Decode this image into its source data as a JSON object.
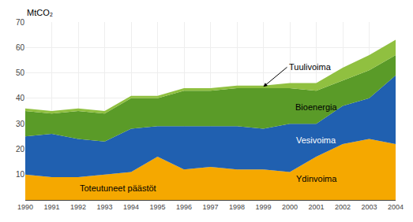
{
  "chart_data": {
    "type": "area",
    "stacked": true,
    "ylabel": "MtCO₂",
    "x": [
      1990,
      1991,
      1992,
      1993,
      1994,
      1995,
      1996,
      1997,
      1998,
      1999,
      2000,
      2001,
      2002,
      2003,
      2004
    ],
    "xlim": [
      1990,
      2004
    ],
    "xticks": [
      1990,
      1991,
      1992,
      1993,
      1994,
      1995,
      1996,
      1997,
      1998,
      1999,
      2000,
      2001,
      2002,
      2003,
      2004
    ],
    "ylim": [
      0,
      70
    ],
    "yticks": [
      {
        "value": 0,
        "label": ""
      },
      10,
      20,
      30,
      40,
      50,
      60,
      70
    ],
    "grid": true,
    "series": [
      {
        "name": "Ydinvoima",
        "color": "#F5A800",
        "values": [
          10,
          9,
          9,
          10,
          11,
          17,
          12,
          13,
          12,
          12,
          11,
          17,
          22,
          24,
          22
        ]
      },
      {
        "name": "Vesivoima",
        "color": "#2060B0",
        "values": [
          15,
          17,
          15,
          13,
          17,
          12,
          17,
          16,
          17,
          16,
          19,
          13,
          15,
          16,
          27
        ]
      },
      {
        "name": "Bioenergia",
        "color": "#5A9B28",
        "values": [
          10,
          8,
          11,
          11,
          12,
          11,
          14,
          14,
          15,
          16,
          14,
          13,
          10,
          11,
          8
        ]
      },
      {
        "name": "Tuulivoima",
        "color": "#90C040",
        "values": [
          1,
          1,
          1,
          1,
          1,
          1,
          1,
          1,
          1,
          1,
          2,
          3,
          5,
          6,
          6
        ]
      }
    ],
    "annotations": [
      "Toteutuneet päästöt"
    ]
  }
}
